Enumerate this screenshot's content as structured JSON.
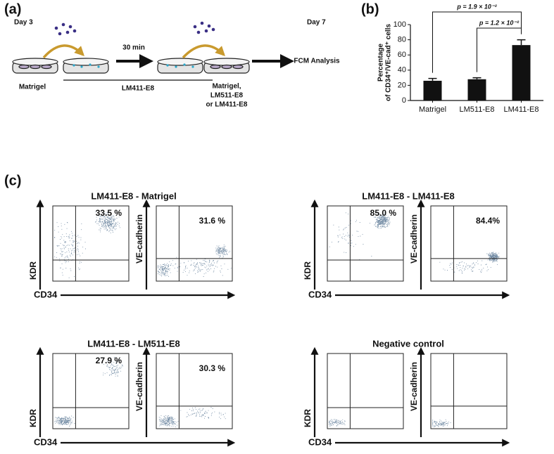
{
  "panel_labels": [
    "(a)",
    "(b)",
    "(c)"
  ],
  "protocol": {
    "day_start": "Day 3",
    "day_end": "Day 7",
    "first_coating": "Matrigel",
    "interval": "30 min",
    "second_coating": "LM411-E8",
    "final_coating": [
      "Matrigel,",
      "LM511-E8",
      "or LM411-E8"
    ],
    "analysis": "FCM Analysis"
  },
  "chart_data": {
    "type": "bar",
    "ylabel": [
      "Percentage",
      "of CD34⁺/VE-cad⁺ cells"
    ],
    "categories": [
      "Matrigel",
      "LM511-E8",
      "LM411-E8"
    ],
    "values": [
      26,
      28,
      73
    ],
    "errors": [
      3,
      2,
      7
    ],
    "color": "#111111",
    "ylim": [
      0,
      100
    ],
    "yticks": [
      0,
      20,
      40,
      60,
      80,
      100
    ],
    "annotations": [
      "p = 1.9 × 10⁻²",
      "p = 1.2 × 10⁻²"
    ]
  },
  "flow": {
    "groups": [
      {
        "title": "LM411-E8 - Matrigel",
        "x_label": "CD34",
        "plots": [
          {
            "y_label": "KDR",
            "percent": "33.5 %"
          },
          {
            "y_label": "VE-cadherin",
            "percent": "31.6 %"
          }
        ]
      },
      {
        "title": "LM411-E8 - LM411-E8",
        "x_label": "CD34",
        "plots": [
          {
            "y_label": "KDR",
            "percent": "85.0 %"
          },
          {
            "y_label": "VE-cadherin",
            "percent": "84.4%"
          }
        ]
      },
      {
        "title": "LM411-E8 - LM511-E8",
        "x_label": "CD34",
        "plots": [
          {
            "y_label": "KDR",
            "percent": "27.9 %"
          },
          {
            "y_label": "VE-cadherin",
            "percent": "30.3 %"
          }
        ]
      },
      {
        "title": "Negative control",
        "x_label": "CD34",
        "plots": [
          {
            "y_label": "KDR"
          },
          {
            "y_label": "VE-cadherin"
          }
        ]
      }
    ]
  }
}
